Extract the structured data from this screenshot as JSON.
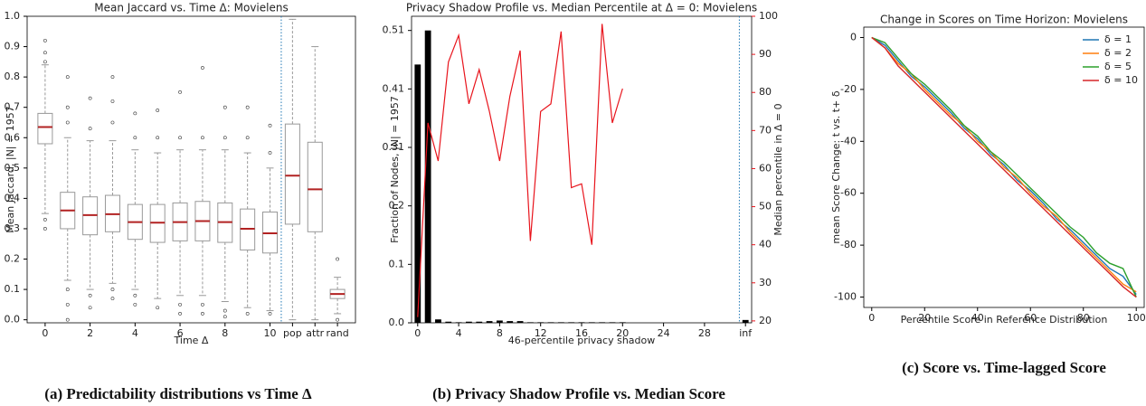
{
  "chart_data": [
    {
      "type": "box",
      "title": "Mean Jaccard vs. Time Δ: Movielens",
      "x_label": "Time Δ",
      "y_label": "Mean Jaccard, |N| = 1957",
      "caption": "(a) Predictability distributions vs Time Δ",
      "categories": [
        "0",
        null,
        "2",
        null,
        "4",
        null,
        "6",
        null,
        "8",
        null,
        "10",
        "pop",
        "attr",
        "rand"
      ],
      "ylim": [
        -0.01,
        1.0
      ],
      "yticks": [
        {
          "value": 0,
          "label": "0.0"
        },
        0.1,
        0.2,
        0.3,
        0.4,
        0.5,
        0.6,
        0.7,
        0.8,
        0.9,
        {
          "value": 1,
          "label": "1.0"
        }
      ],
      "box_color": "#999999",
      "median_color": "#b22222",
      "boxes": [
        {
          "low": 0.35,
          "q1": 0.58,
          "median": 0.635,
          "q3": 0.68,
          "high": 0.84,
          "outliers": [
            0.85,
            0.88,
            0.92,
            0.33,
            0.3
          ]
        },
        {
          "low": 0.13,
          "q1": 0.3,
          "median": 0.36,
          "q3": 0.42,
          "high": 0.6,
          "outliers": [
            0.65,
            0.7,
            0.8,
            0.1,
            0.05,
            0.0
          ]
        },
        {
          "low": 0.1,
          "q1": 0.28,
          "median": 0.345,
          "q3": 0.405,
          "high": 0.59,
          "outliers": [
            0.63,
            0.73,
            0.08,
            0.04
          ]
        },
        {
          "low": 0.12,
          "q1": 0.29,
          "median": 0.348,
          "q3": 0.41,
          "high": 0.59,
          "outliers": [
            0.65,
            0.72,
            0.8,
            0.1,
            0.07
          ]
        },
        {
          "low": 0.1,
          "q1": 0.265,
          "median": 0.322,
          "q3": 0.38,
          "high": 0.56,
          "outliers": [
            0.6,
            0.68,
            0.08,
            0.05
          ]
        },
        {
          "low": 0.07,
          "q1": 0.255,
          "median": 0.32,
          "q3": 0.38,
          "high": 0.55,
          "outliers": [
            0.6,
            0.69,
            0.04
          ]
        },
        {
          "low": 0.08,
          "q1": 0.26,
          "median": 0.322,
          "q3": 0.385,
          "high": 0.56,
          "outliers": [
            0.6,
            0.75,
            0.05,
            0.02
          ]
        },
        {
          "low": 0.08,
          "q1": 0.26,
          "median": 0.325,
          "q3": 0.39,
          "high": 0.56,
          "outliers": [
            0.6,
            0.83,
            0.05,
            0.02
          ]
        },
        {
          "low": 0.06,
          "q1": 0.255,
          "median": 0.322,
          "q3": 0.385,
          "high": 0.56,
          "outliers": [
            0.6,
            0.7,
            0.03,
            0.01
          ]
        },
        {
          "low": 0.04,
          "q1": 0.23,
          "median": 0.3,
          "q3": 0.365,
          "high": 0.55,
          "outliers": [
            0.6,
            0.7,
            0.02
          ]
        },
        {
          "low": 0.03,
          "q1": 0.22,
          "median": 0.285,
          "q3": 0.355,
          "high": 0.5,
          "outliers": [
            0.55,
            0.64,
            0.02
          ]
        },
        {
          "low": 0.0,
          "q1": 0.315,
          "median": 0.475,
          "q3": 0.645,
          "high": 0.99,
          "outliers": []
        },
        {
          "low": 0.0,
          "q1": 0.29,
          "median": 0.43,
          "q3": 0.585,
          "high": 0.9,
          "outliers": []
        },
        {
          "low": 0.02,
          "q1": 0.07,
          "median": 0.085,
          "q3": 0.1,
          "high": 0.14,
          "outliers": [
            0.2,
            0.0
          ]
        }
      ]
    },
    {
      "type": "bar",
      "title": "Privacy Shadow Profile vs. Median Percentile at Δ = 0: Movielens",
      "x_label": "46-percentile privacy shadow",
      "y_label": "Fraction of Nodes, |N| = 1957",
      "y2_label": "Median percentile in Δ = 0",
      "caption": "(b) Privacy Shadow Profile vs. Median Score",
      "xlim": [
        -0.6,
        32.6
      ],
      "xticks": [
        0,
        4,
        8,
        12,
        16,
        20,
        24,
        28,
        {
          "value": 32,
          "label": "inf"
        }
      ],
      "ylim": [
        0,
        0.54
      ],
      "yticks": [
        {
          "value": 0,
          "label": "0.0"
        },
        {
          "value": 0.103,
          "label": "0.1"
        },
        {
          "value": 0.206,
          "label": "0.2"
        },
        {
          "value": 0.309,
          "label": "0.31"
        },
        {
          "value": 0.412,
          "label": "0.41"
        },
        {
          "value": 0.515,
          "label": "0.51"
        }
      ],
      "y2lim": [
        19.5,
        100
      ],
      "y2ticks": [
        20,
        30,
        40,
        50,
        60,
        70,
        80,
        90,
        100
      ],
      "y2_color": "#e8141c",
      "series": [
        {
          "type": "bar",
          "color": "#000000",
          "x": [
            0,
            1,
            2,
            3,
            4,
            5,
            6,
            7,
            8,
            9,
            10,
            11,
            12,
            13,
            14,
            15,
            16,
            17,
            18,
            19,
            20,
            32
          ],
          "values": [
            0.455,
            0.515,
            0.006,
            0.002,
            0.001,
            0.002,
            0.002,
            0.003,
            0.004,
            0.003,
            0.003,
            0.001,
            0.001,
            0.001,
            0.001,
            0.001,
            0.001,
            0.001,
            0.001,
            0.001,
            0.001,
            0.005
          ]
        },
        {
          "type": "line",
          "color": "#e8141c",
          "axis": "y2",
          "x": [
            0,
            1,
            2,
            3,
            4,
            5,
            6,
            7,
            8,
            9,
            10,
            11,
            12,
            13,
            14,
            15,
            16,
            17,
            18,
            19,
            20
          ],
          "values": [
            21,
            72,
            62,
            88,
            95,
            77,
            86,
            75,
            62,
            79,
            91,
            41,
            75,
            77,
            96,
            55,
            56,
            40,
            98,
            72,
            81
          ]
        }
      ]
    },
    {
      "type": "line",
      "title": "Change in Scores on Time Horizon: Movielens",
      "x_label": "Percentile Score in Reference Distribution",
      "y_label": "mean Score Change: t vs. t+ δ",
      "caption": "(c) Score vs. Time-lagged Score",
      "legend": "upper right",
      "xlim": [
        -3,
        103
      ],
      "xticks": [
        0,
        20,
        40,
        60,
        80,
        100
      ],
      "ylim": [
        -104,
        4
      ],
      "yticks": [
        0,
        -20,
        -40,
        -60,
        -80,
        -100
      ],
      "x": [
        0,
        5,
        10,
        15,
        20,
        25,
        30,
        35,
        40,
        45,
        50,
        55,
        60,
        65,
        70,
        75,
        80,
        85,
        90,
        95,
        100
      ],
      "series": [
        {
          "name": "δ = 1",
          "color": "#1f77b4",
          "values": [
            0,
            -3,
            -9,
            -15,
            -19,
            -24,
            -29,
            -35,
            -39,
            -45,
            -49,
            -55,
            -59,
            -64,
            -70,
            -74,
            -79,
            -84,
            -89,
            -92,
            -99
          ]
        },
        {
          "name": "δ = 2",
          "color": "#ff7f0e",
          "values": [
            0,
            -4,
            -10,
            -14,
            -20,
            -25,
            -30,
            -34,
            -40,
            -44,
            -50,
            -54,
            -60,
            -65,
            -69,
            -75,
            -80,
            -85,
            -90,
            -95,
            -98
          ]
        },
        {
          "name": "δ = 5",
          "color": "#2ca02c",
          "values": [
            0,
            -2,
            -8,
            -14,
            -18,
            -23,
            -28,
            -34,
            -38,
            -44,
            -48,
            -53,
            -58,
            -63,
            -68,
            -73,
            -77,
            -83,
            -87,
            -89,
            -100
          ]
        },
        {
          "name": "δ = 10",
          "color": "#d62728",
          "values": [
            0,
            -4,
            -11,
            -16,
            -21,
            -26,
            -31,
            -36,
            -41,
            -46,
            -51,
            -56,
            -61,
            -66,
            -71,
            -76,
            -81,
            -86,
            -91,
            -96,
            -100
          ]
        }
      ]
    }
  ]
}
